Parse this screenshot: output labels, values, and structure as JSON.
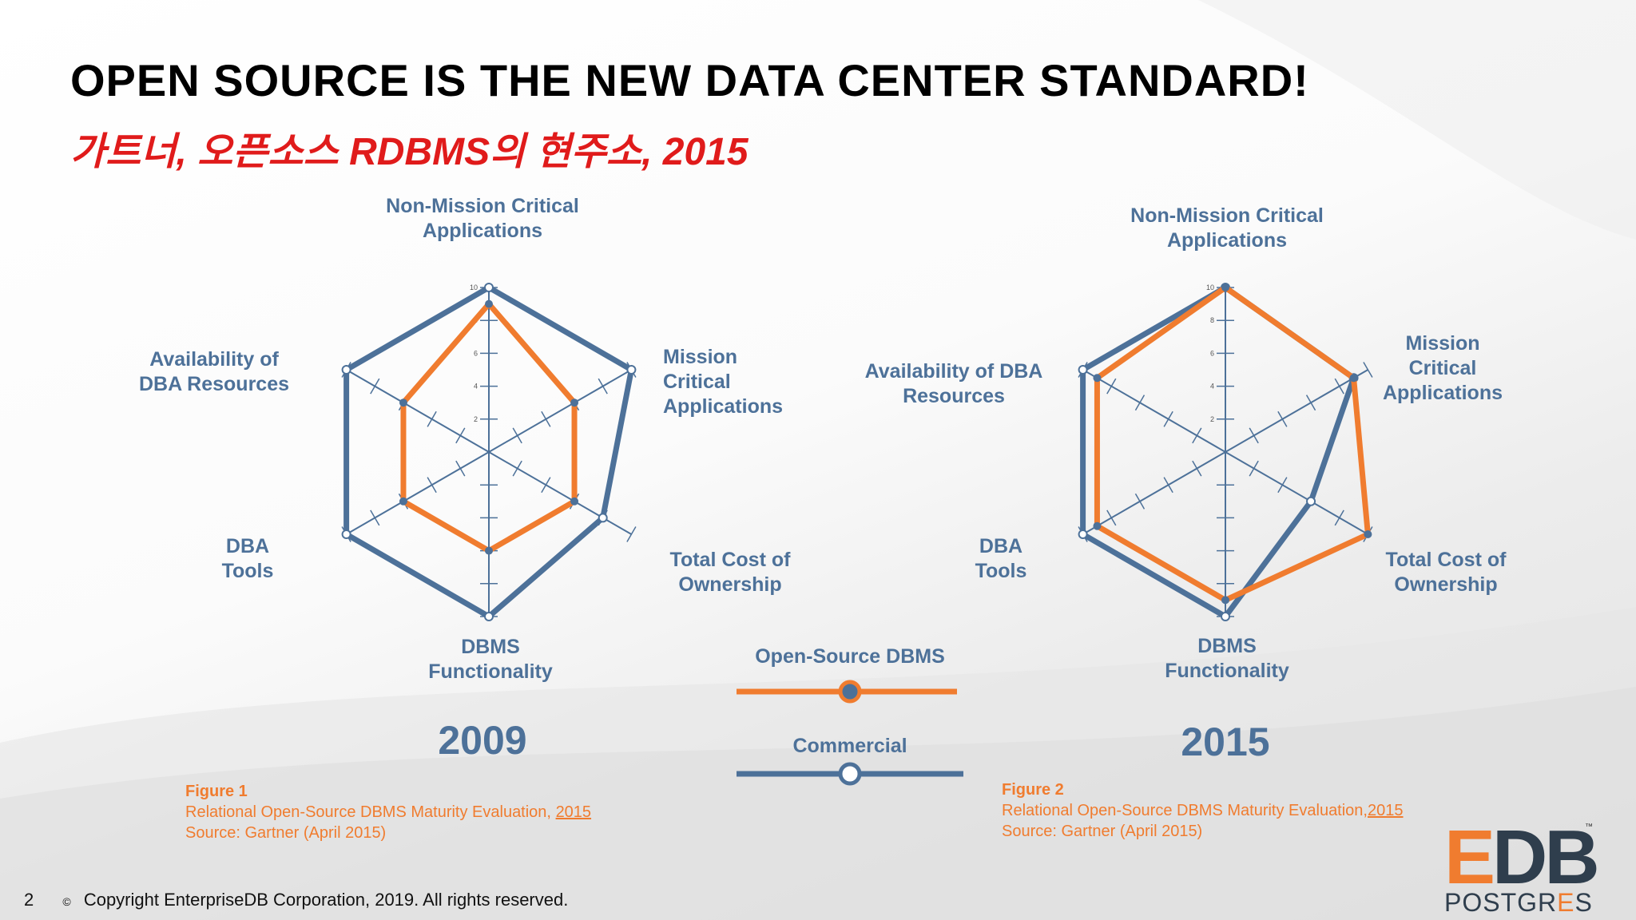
{
  "slide": {
    "title": "OPEN SOURCE IS THE NEW DATA CENTER STANDARD!",
    "subtitle": "가트너, 오픈소스 RDBMS의 현주소, 2015",
    "page_number": "2",
    "copyright_symbol": "©",
    "copyright": "Copyright EnterpriseDB Corporation, 2019. All rights reserved."
  },
  "colors": {
    "open_source": "#f07c2f",
    "commercial": "#4d7199",
    "title_red": "#e01b1b"
  },
  "legend": {
    "open_source_label": "Open-Source DBMS",
    "commercial_label": "Commercial"
  },
  "figures": [
    {
      "label": "Figure 1",
      "caption": "Relational Open-Source DBMS Maturity Evaluation,",
      "caption_year": "2015",
      "source": "Source: Gartner (April 2015)"
    },
    {
      "label": "Figure 2",
      "caption": "Relational Open-Source DBMS Maturity Evaluation,",
      "caption_year": "2015",
      "source": "Source: Gartner (April 2015)"
    }
  ],
  "logo": {
    "e": "E",
    "db": "DB",
    "tm": "™",
    "postgres_a": "POSTGR",
    "postgres_b": "E",
    "postgres_c": "S"
  },
  "chart_data": [
    {
      "type": "radar",
      "title": "2009",
      "axes": [
        "Non-Mission Critical\nApplications",
        "Mission\nCritical\nApplications",
        "Total Cost of\nOwnership",
        "DBMS\nFunctionality",
        "DBA\nTools",
        "Availability of\nDBA Resources"
      ],
      "ticks": [
        2,
        4,
        6,
        8,
        10
      ],
      "rmax": 10,
      "series": [
        {
          "name": "Open-Source DBMS",
          "values": [
            9,
            6,
            6,
            6,
            6,
            6
          ]
        },
        {
          "name": "Commercial",
          "values": [
            10,
            10,
            8,
            10,
            10,
            10
          ]
        }
      ]
    },
    {
      "type": "radar",
      "title": "2015",
      "axes": [
        "Non-Mission Critical\nApplications",
        "Mission\nCritical\nApplications",
        "Total Cost of\nOwnership",
        "DBMS\nFunctionality",
        "DBA\nTools",
        "Availability of DBA\nResources"
      ],
      "ticks": [
        2,
        4,
        6,
        8,
        10
      ],
      "rmax": 10,
      "series": [
        {
          "name": "Open-Source DBMS",
          "values": [
            10,
            9,
            10,
            9,
            9,
            9
          ]
        },
        {
          "name": "Commercial",
          "values": [
            10,
            9,
            6,
            10,
            10,
            10
          ]
        }
      ]
    }
  ]
}
